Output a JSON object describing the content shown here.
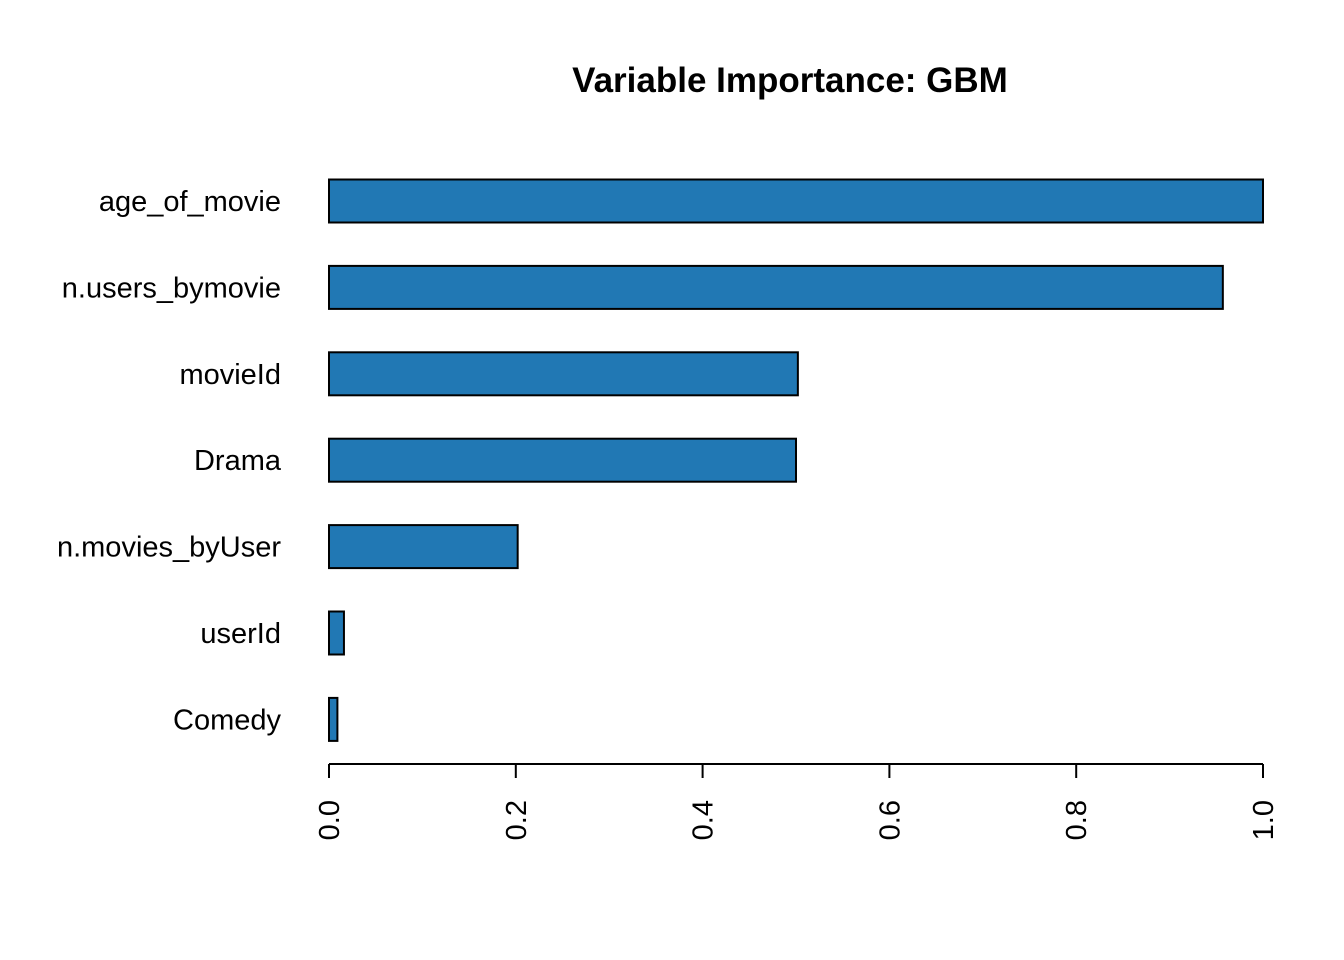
{
  "chart_data": {
    "type": "bar",
    "orientation": "horizontal",
    "title": "Variable Importance: GBM",
    "xlabel": "",
    "ylabel": "",
    "categories": [
      "age_of_movie",
      "n.users_bymovie",
      "movieId",
      "Drama",
      "n.movies_byUser",
      "userId",
      "Comedy"
    ],
    "values": [
      1.0,
      0.957,
      0.502,
      0.5,
      0.202,
      0.016,
      0.009
    ],
    "xlim": [
      0,
      1
    ],
    "ticks": [
      "0.0",
      "0.2",
      "0.4",
      "0.6",
      "0.8",
      "1.0"
    ],
    "tick_orientation": "vertical",
    "bar_color": "#2178B4",
    "grid": false,
    "legend": "none"
  }
}
